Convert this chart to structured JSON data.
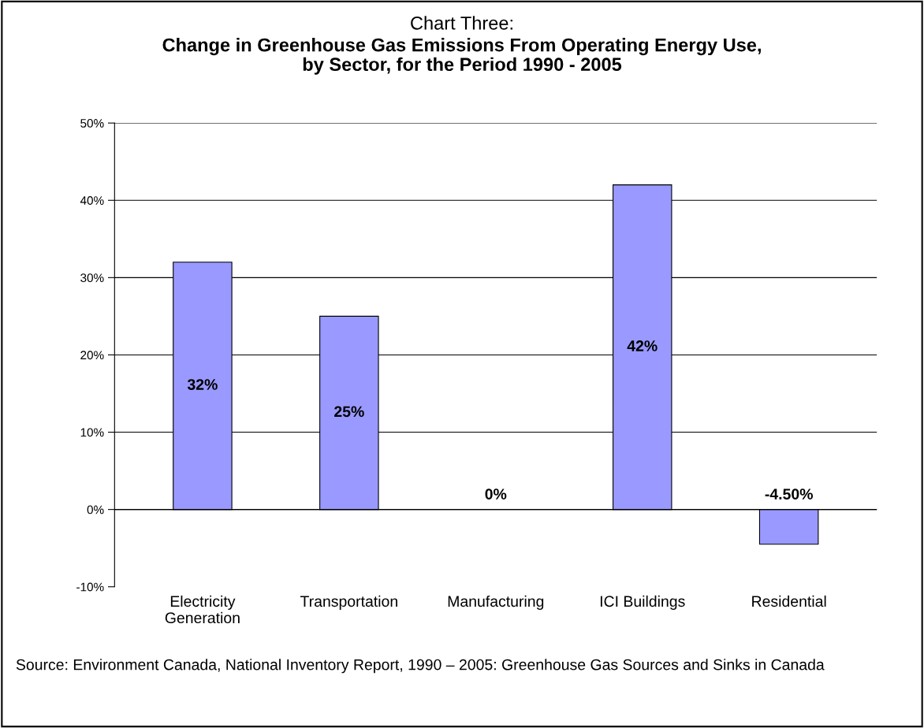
{
  "chart_data": {
    "type": "bar",
    "title": "Chart Three:",
    "subtitle": "Change in Greenhouse Gas Emissions From Operating Energy Use,\nby Sector, for the Period 1990 - 2005",
    "categories": [
      "Electricity\nGeneration",
      "Transportation",
      "Manufacturing",
      "ICI Buildings",
      "Residential"
    ],
    "values": [
      32,
      25,
      0,
      42,
      -4.5
    ],
    "value_labels": [
      "32%",
      "25%",
      "0%",
      "42%",
      "-4.50%"
    ],
    "color": "#9999ff",
    "ylim": [
      -10,
      50
    ],
    "yticks": [
      {
        "value": -10,
        "label": "-10%"
      },
      {
        "value": 0,
        "label": "0%"
      },
      {
        "value": 10,
        "label": "10%"
      },
      {
        "value": 20,
        "label": "20%"
      },
      {
        "value": 30,
        "label": "30%"
      },
      {
        "value": 40,
        "label": "40%"
      },
      {
        "value": 50,
        "label": "50%"
      }
    ],
    "grid": "y",
    "annotations": [
      "Source: Environment Canada, National Inventory Report, 1990 – 2005: Greenhouse Gas Sources and Sinks in Canada"
    ]
  }
}
